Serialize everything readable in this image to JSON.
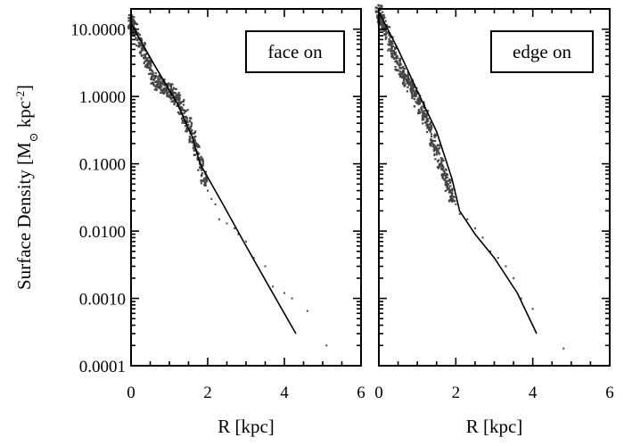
{
  "chart_data": [
    {
      "type": "scatter",
      "title": "",
      "xlabel": "R [kpc]",
      "ylabel": "Surface Density [M⊙ kpc⁻²]",
      "ylabel_parts": {
        "a": "Surface Density [M",
        "sub": "⊙",
        "b": " kpc",
        "sup": "-2",
        "c": "]"
      },
      "xlim": [
        0,
        6
      ],
      "ylim": [
        0.0001,
        20
      ],
      "yscale": "log",
      "grid": false,
      "xticks": [
        0,
        2,
        4,
        6
      ],
      "xtick_labels": [
        "0",
        "2",
        "4",
        "6"
      ],
      "yticks": [
        0.0001,
        0.001,
        0.01,
        0.1,
        1,
        10
      ],
      "ytick_labels": [
        "0.0001",
        "0.0010",
        "0.0100",
        "0.1000",
        "1.0000",
        "10.0000"
      ],
      "legend": {
        "label": "face on",
        "position": "top-right"
      },
      "fit_line": {
        "x": [
          0.0,
          0.6,
          1.2,
          1.6,
          1.8,
          2.4,
          3.0,
          3.6,
          4.3
        ],
        "y": [
          12.0,
          3.0,
          0.8,
          0.25,
          0.1,
          0.025,
          0.006,
          0.0015,
          0.0003
        ]
      },
      "scatter_points": {
        "x": [
          0.0,
          0.05,
          0.1,
          0.2,
          0.3,
          0.4,
          0.5,
          0.6,
          0.7,
          0.8,
          0.9,
          1.0,
          1.1,
          1.2,
          1.3,
          1.4,
          1.5,
          1.6,
          1.7,
          1.8,
          1.9,
          2.0,
          2.1,
          2.2,
          2.3,
          2.5,
          2.7,
          2.8,
          3.0,
          3.2,
          3.5,
          3.7,
          4.0,
          4.2,
          4.6,
          5.1
        ],
        "y": [
          13.0,
          11.0,
          10.0,
          7.0,
          5.0,
          3.5,
          2.7,
          1.8,
          1.6,
          1.4,
          1.3,
          1.2,
          1.05,
          0.9,
          0.7,
          0.5,
          0.38,
          0.25,
          0.16,
          0.1,
          0.06,
          0.04,
          0.03,
          0.025,
          0.015,
          0.013,
          0.011,
          0.009,
          0.007,
          0.004,
          0.003,
          0.0015,
          0.0012,
          0.001,
          0.00065,
          0.0002
        ]
      }
    },
    {
      "type": "scatter",
      "title": "",
      "xlabel": "R [kpc]",
      "ylabel": "",
      "xlim": [
        0,
        6
      ],
      "ylim": [
        0.0001,
        20
      ],
      "yscale": "log",
      "grid": false,
      "xticks": [
        0,
        2,
        4,
        6
      ],
      "xtick_labels": [
        "0",
        "2",
        "4",
        "6"
      ],
      "yticks": [
        0.0001,
        0.001,
        0.01,
        0.1,
        1,
        10
      ],
      "ytick_labels": [
        "",
        "",
        "",
        "",
        "",
        ""
      ],
      "legend": {
        "label": "edge on",
        "position": "top-right"
      },
      "fit_line": {
        "x": [
          0.0,
          0.5,
          1.0,
          1.5,
          1.9,
          2.1,
          2.5,
          3.0,
          3.6,
          4.1
        ],
        "y": [
          18.0,
          5.0,
          1.2,
          0.3,
          0.06,
          0.02,
          0.009,
          0.004,
          0.0012,
          0.0003
        ]
      },
      "scatter_points": {
        "x": [
          0.0,
          0.05,
          0.1,
          0.2,
          0.3,
          0.4,
          0.5,
          0.6,
          0.7,
          0.8,
          0.9,
          1.0,
          1.1,
          1.2,
          1.3,
          1.4,
          1.5,
          1.6,
          1.7,
          1.8,
          1.9,
          2.0,
          2.1,
          2.3,
          2.5,
          2.7,
          2.9,
          3.1,
          3.3,
          3.5,
          3.7,
          4.0,
          4.8
        ],
        "y": [
          18.0,
          15.0,
          12.0,
          9.0,
          6.0,
          4.5,
          3.0,
          2.3,
          1.8,
          1.5,
          1.2,
          0.9,
          0.65,
          0.5,
          0.35,
          0.22,
          0.15,
          0.1,
          0.07,
          0.05,
          0.035,
          0.025,
          0.018,
          0.015,
          0.011,
          0.008,
          0.005,
          0.004,
          0.003,
          0.002,
          0.001,
          0.0007,
          0.00018
        ]
      }
    }
  ]
}
